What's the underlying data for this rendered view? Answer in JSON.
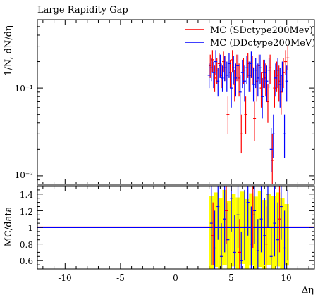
{
  "chart_data": [
    {
      "type": "line",
      "title": "Large Rapidity Gap",
      "ylabel": "1/N, dN/dη",
      "yscale": "log",
      "xlim": [
        -12.5,
        12.5
      ],
      "ylim": [
        0.008,
        0.6
      ],
      "y_ticks": [
        {
          "value": 0.1,
          "label": "10⁻¹"
        },
        {
          "value": 0.01,
          "label": "10⁻²"
        }
      ],
      "legend_position": "top-right",
      "series": [
        {
          "name": "MC (SDctype200Mev)",
          "color": "#ff0000",
          "points": [
            {
              "x": 3.1,
              "y": 0.18,
              "lo": 0.13,
              "hi": 0.24
            },
            {
              "x": 3.3,
              "y": 0.21,
              "lo": 0.15,
              "hi": 0.27
            },
            {
              "x": 3.5,
              "y": 0.13,
              "lo": 0.09,
              "hi": 0.18
            },
            {
              "x": 3.7,
              "y": 0.16,
              "lo": 0.11,
              "hi": 0.22
            },
            {
              "x": 3.9,
              "y": 0.19,
              "lo": 0.13,
              "hi": 0.25
            },
            {
              "x": 4.1,
              "y": 0.14,
              "lo": 0.1,
              "hi": 0.19
            },
            {
              "x": 4.3,
              "y": 0.2,
              "lo": 0.15,
              "hi": 0.26
            },
            {
              "x": 4.5,
              "y": 0.17,
              "lo": 0.12,
              "hi": 0.23
            },
            {
              "x": 4.7,
              "y": 0.05,
              "lo": 0.03,
              "hi": 0.08
            },
            {
              "x": 4.9,
              "y": 0.15,
              "lo": 0.1,
              "hi": 0.21
            },
            {
              "x": 5.1,
              "y": 0.21,
              "lo": 0.15,
              "hi": 0.27
            },
            {
              "x": 5.3,
              "y": 0.11,
              "lo": 0.07,
              "hi": 0.16
            },
            {
              "x": 5.5,
              "y": 0.18,
              "lo": 0.12,
              "hi": 0.24
            },
            {
              "x": 5.7,
              "y": 0.13,
              "lo": 0.08,
              "hi": 0.19
            },
            {
              "x": 5.9,
              "y": 0.03,
              "lo": 0.018,
              "hi": 0.05
            },
            {
              "x": 6.1,
              "y": 0.16,
              "lo": 0.11,
              "hi": 0.22
            },
            {
              "x": 6.3,
              "y": 0.05,
              "lo": 0.03,
              "hi": 0.08
            },
            {
              "x": 6.5,
              "y": 0.19,
              "lo": 0.13,
              "hi": 0.25
            },
            {
              "x": 6.7,
              "y": 0.14,
              "lo": 0.09,
              "hi": 0.2
            },
            {
              "x": 6.9,
              "y": 0.17,
              "lo": 0.11,
              "hi": 0.23
            },
            {
              "x": 7.1,
              "y": 0.045,
              "lo": 0.025,
              "hi": 0.07
            },
            {
              "x": 7.3,
              "y": 0.12,
              "lo": 0.07,
              "hi": 0.18
            },
            {
              "x": 7.5,
              "y": 0.18,
              "lo": 0.12,
              "hi": 0.24
            },
            {
              "x": 7.7,
              "y": 0.1,
              "lo": 0.06,
              "hi": 0.15
            },
            {
              "x": 7.9,
              "y": 0.15,
              "lo": 0.1,
              "hi": 0.21
            },
            {
              "x": 8.1,
              "y": 0.13,
              "lo": 0.08,
              "hi": 0.19
            },
            {
              "x": 8.3,
              "y": 0.07,
              "lo": 0.04,
              "hi": 0.11
            },
            {
              "x": 8.5,
              "y": 0.17,
              "lo": 0.11,
              "hi": 0.24
            },
            {
              "x": 8.7,
              "y": 0.015,
              "lo": 0.008,
              "hi": 0.03
            },
            {
              "x": 8.9,
              "y": 0.1,
              "lo": 0.06,
              "hi": 0.16
            },
            {
              "x": 9.1,
              "y": 0.14,
              "lo": 0.09,
              "hi": 0.2
            },
            {
              "x": 9.3,
              "y": 0.12,
              "lo": 0.07,
              "hi": 0.18
            },
            {
              "x": 9.5,
              "y": 0.09,
              "lo": 0.05,
              "hi": 0.14
            },
            {
              "x": 9.7,
              "y": 0.15,
              "lo": 0.1,
              "hi": 0.22
            },
            {
              "x": 9.9,
              "y": 0.2,
              "lo": 0.14,
              "hi": 0.27
            },
            {
              "x": 10.1,
              "y": 0.22,
              "lo": 0.16,
              "hi": 0.3
            }
          ]
        },
        {
          "name": "MC (DDctype200MeV)",
          "color": "#0000ff",
          "points": [
            {
              "x": 3.0,
              "y": 0.14,
              "lo": 0.1,
              "hi": 0.19
            },
            {
              "x": 3.2,
              "y": 0.17,
              "lo": 0.12,
              "hi": 0.22
            },
            {
              "x": 3.4,
              "y": 0.15,
              "lo": 0.1,
              "hi": 0.2
            },
            {
              "x": 3.6,
              "y": 0.2,
              "lo": 0.14,
              "hi": 0.27
            },
            {
              "x": 3.8,
              "y": 0.12,
              "lo": 0.08,
              "hi": 0.17
            },
            {
              "x": 4.0,
              "y": 0.18,
              "lo": 0.13,
              "hi": 0.24
            },
            {
              "x": 4.2,
              "y": 0.13,
              "lo": 0.09,
              "hi": 0.18
            },
            {
              "x": 4.4,
              "y": 0.17,
              "lo": 0.12,
              "hi": 0.23
            },
            {
              "x": 4.6,
              "y": 0.14,
              "lo": 0.09,
              "hi": 0.2
            },
            {
              "x": 4.8,
              "y": 0.19,
              "lo": 0.13,
              "hi": 0.25
            },
            {
              "x": 5.0,
              "y": 0.1,
              "lo": 0.06,
              "hi": 0.15
            },
            {
              "x": 5.2,
              "y": 0.17,
              "lo": 0.11,
              "hi": 0.23
            },
            {
              "x": 5.4,
              "y": 0.13,
              "lo": 0.08,
              "hi": 0.19
            },
            {
              "x": 5.6,
              "y": 0.18,
              "lo": 0.12,
              "hi": 0.24
            },
            {
              "x": 5.8,
              "y": 0.09,
              "lo": 0.05,
              "hi": 0.14
            },
            {
              "x": 6.0,
              "y": 0.15,
              "lo": 0.1,
              "hi": 0.21
            },
            {
              "x": 6.2,
              "y": 0.12,
              "lo": 0.07,
              "hi": 0.18
            },
            {
              "x": 6.4,
              "y": 0.17,
              "lo": 0.11,
              "hi": 0.23
            },
            {
              "x": 6.6,
              "y": 0.14,
              "lo": 0.09,
              "hi": 0.2
            },
            {
              "x": 6.8,
              "y": 0.19,
              "lo": 0.13,
              "hi": 0.26
            },
            {
              "x": 7.0,
              "y": 0.11,
              "lo": 0.07,
              "hi": 0.17
            },
            {
              "x": 7.2,
              "y": 0.16,
              "lo": 0.1,
              "hi": 0.22
            },
            {
              "x": 7.4,
              "y": 0.13,
              "lo": 0.08,
              "hi": 0.19
            },
            {
              "x": 7.6,
              "y": 0.17,
              "lo": 0.11,
              "hi": 0.24
            },
            {
              "x": 7.8,
              "y": 0.08,
              "lo": 0.045,
              "hi": 0.13
            },
            {
              "x": 8.0,
              "y": 0.15,
              "lo": 0.1,
              "hi": 0.21
            },
            {
              "x": 8.2,
              "y": 0.12,
              "lo": 0.07,
              "hi": 0.18
            },
            {
              "x": 8.4,
              "y": 0.16,
              "lo": 0.1,
              "hi": 0.22
            },
            {
              "x": 8.6,
              "y": 0.02,
              "lo": 0.011,
              "hi": 0.035
            },
            {
              "x": 8.8,
              "y": 0.03,
              "lo": 0.016,
              "hi": 0.05
            },
            {
              "x": 9.0,
              "y": 0.13,
              "lo": 0.08,
              "hi": 0.19
            },
            {
              "x": 9.2,
              "y": 0.16,
              "lo": 0.1,
              "hi": 0.22
            },
            {
              "x": 9.4,
              "y": 0.11,
              "lo": 0.06,
              "hi": 0.17
            },
            {
              "x": 9.6,
              "y": 0.14,
              "lo": 0.09,
              "hi": 0.2
            },
            {
              "x": 9.8,
              "y": 0.03,
              "lo": 0.016,
              "hi": 0.05
            },
            {
              "x": 10.0,
              "y": 0.12,
              "lo": 0.07,
              "hi": 0.18
            }
          ]
        }
      ]
    },
    {
      "type": "line",
      "ylabel": "MC/data",
      "xlabel": "Δη",
      "xlim": [
        -12.5,
        12.5
      ],
      "ylim": [
        0.5,
        1.5
      ],
      "x_ticks": [
        {
          "value": -10,
          "label": "-10"
        },
        {
          "value": -5,
          "label": "-5"
        },
        {
          "value": 0,
          "label": "0"
        },
        {
          "value": 5,
          "label": "5"
        },
        {
          "value": 10,
          "label": "10"
        }
      ],
      "y_ticks": [
        {
          "value": 0.6,
          "label": "0.6"
        },
        {
          "value": 0.8,
          "label": "0.8"
        },
        {
          "value": 1.0,
          "label": "1"
        },
        {
          "value": 1.2,
          "label": "1.2"
        },
        {
          "value": 1.4,
          "label": "1.4"
        }
      ],
      "reference_line": {
        "y": 1.0,
        "colors": [
          "#ff0000",
          "#0000ff"
        ]
      },
      "band_color": "#ffff00",
      "band": [
        {
          "x0": 3.0,
          "x1": 3.4,
          "lo": 0.5,
          "hi": 1.38
        },
        {
          "x0": 3.4,
          "x1": 3.8,
          "lo": 0.52,
          "hi": 1.42
        },
        {
          "x0": 3.8,
          "x1": 4.2,
          "lo": 0.5,
          "hi": 1.35
        },
        {
          "x0": 4.2,
          "x1": 4.6,
          "lo": 0.55,
          "hi": 1.45
        },
        {
          "x0": 4.6,
          "x1": 5.0,
          "lo": 0.5,
          "hi": 1.32
        },
        {
          "x0": 5.0,
          "x1": 5.4,
          "lo": 0.53,
          "hi": 1.4
        },
        {
          "x0": 5.4,
          "x1": 5.8,
          "lo": 0.5,
          "hi": 1.36
        },
        {
          "x0": 5.8,
          "x1": 6.2,
          "lo": 0.56,
          "hi": 1.43
        },
        {
          "x0": 6.2,
          "x1": 6.6,
          "lo": 0.5,
          "hi": 1.34
        },
        {
          "x0": 6.6,
          "x1": 7.0,
          "lo": 0.54,
          "hi": 1.41
        },
        {
          "x0": 7.0,
          "x1": 7.4,
          "lo": 0.5,
          "hi": 1.37
        },
        {
          "x0": 7.4,
          "x1": 7.8,
          "lo": 0.52,
          "hi": 1.44
        },
        {
          "x0": 7.8,
          "x1": 8.2,
          "lo": 0.5,
          "hi": 1.33
        },
        {
          "x0": 8.2,
          "x1": 8.6,
          "lo": 0.55,
          "hi": 1.4
        },
        {
          "x0": 8.6,
          "x1": 9.0,
          "lo": 0.5,
          "hi": 1.38
        },
        {
          "x0": 9.0,
          "x1": 9.4,
          "lo": 0.53,
          "hi": 1.42
        },
        {
          "x0": 9.4,
          "x1": 9.8,
          "lo": 0.5,
          "hi": 1.35
        },
        {
          "x0": 9.8,
          "x1": 10.2,
          "lo": 0.54,
          "hi": 1.28
        }
      ],
      "ratio_points": [
        {
          "x": 3.2,
          "y": 1.05,
          "lo": 0.55,
          "hi": 1.5,
          "color": "#0000ff"
        },
        {
          "x": 3.5,
          "y": 0.75,
          "lo": 0.5,
          "hi": 1.2,
          "color": "#0000ff"
        },
        {
          "x": 3.8,
          "y": 1.25,
          "lo": 0.85,
          "hi": 1.5,
          "color": "#0000ff"
        },
        {
          "x": 4.1,
          "y": 0.65,
          "lo": 0.5,
          "hi": 1.05,
          "color": "#0000ff"
        },
        {
          "x": 4.4,
          "y": 1.1,
          "lo": 0.7,
          "hi": 1.5,
          "color": "#0000ff"
        },
        {
          "x": 4.7,
          "y": 0.85,
          "lo": 0.5,
          "hi": 1.3,
          "color": "#0000ff"
        },
        {
          "x": 5.0,
          "y": 1.35,
          "lo": 0.95,
          "hi": 1.5,
          "color": "#0000ff"
        },
        {
          "x": 5.3,
          "y": 0.7,
          "lo": 0.5,
          "hi": 1.15,
          "color": "#0000ff"
        },
        {
          "x": 5.6,
          "y": 1.15,
          "lo": 0.75,
          "hi": 1.5,
          "color": "#0000ff"
        },
        {
          "x": 5.9,
          "y": 0.6,
          "lo": 0.5,
          "hi": 0.95,
          "color": "#0000ff"
        },
        {
          "x": 6.2,
          "y": 1.0,
          "lo": 0.6,
          "hi": 1.45,
          "color": "#0000ff"
        },
        {
          "x": 6.5,
          "y": 1.3,
          "lo": 0.9,
          "hi": 1.5,
          "color": "#0000ff"
        },
        {
          "x": 6.8,
          "y": 0.8,
          "lo": 0.5,
          "hi": 1.25,
          "color": "#0000ff"
        },
        {
          "x": 7.1,
          "y": 1.2,
          "lo": 0.8,
          "hi": 1.5,
          "color": "#0000ff"
        },
        {
          "x": 7.4,
          "y": 0.72,
          "lo": 0.5,
          "hi": 1.1,
          "color": "#0000ff"
        },
        {
          "x": 7.7,
          "y": 1.1,
          "lo": 0.7,
          "hi": 1.5,
          "color": "#0000ff"
        },
        {
          "x": 8.0,
          "y": 0.9,
          "lo": 0.55,
          "hi": 1.35,
          "color": "#0000ff"
        },
        {
          "x": 8.3,
          "y": 1.4,
          "lo": 1.0,
          "hi": 1.5,
          "color": "#0000ff"
        },
        {
          "x": 8.6,
          "y": 0.65,
          "lo": 0.5,
          "hi": 1.0,
          "color": "#0000ff"
        },
        {
          "x": 8.9,
          "y": 1.05,
          "lo": 0.65,
          "hi": 1.5,
          "color": "#0000ff"
        },
        {
          "x": 9.2,
          "y": 0.85,
          "lo": 0.5,
          "hi": 1.3,
          "color": "#0000ff"
        },
        {
          "x": 9.5,
          "y": 1.25,
          "lo": 0.85,
          "hi": 1.5,
          "color": "#0000ff"
        },
        {
          "x": 9.8,
          "y": 0.75,
          "lo": 0.5,
          "hi": 1.2,
          "color": "#0000ff"
        },
        {
          "x": 10.1,
          "y": 1.0,
          "lo": 0.6,
          "hi": 1.45,
          "color": "#0000ff"
        },
        {
          "x": 3.35,
          "y": 0.9,
          "lo": 0.55,
          "hi": 1.3,
          "color": "#ff0000"
        },
        {
          "x": 4.55,
          "y": 1.2,
          "lo": 0.8,
          "hi": 1.5,
          "color": "#ff0000"
        },
        {
          "x": 5.75,
          "y": 0.7,
          "lo": 0.5,
          "hi": 1.1,
          "color": "#ff0000"
        },
        {
          "x": 6.95,
          "y": 1.15,
          "lo": 0.75,
          "hi": 1.5,
          "color": "#ff0000"
        },
        {
          "x": 8.15,
          "y": 0.8,
          "lo": 0.5,
          "hi": 1.25,
          "color": "#ff0000"
        },
        {
          "x": 9.35,
          "y": 1.1,
          "lo": 0.7,
          "hi": 1.5,
          "color": "#ff0000"
        }
      ]
    }
  ]
}
